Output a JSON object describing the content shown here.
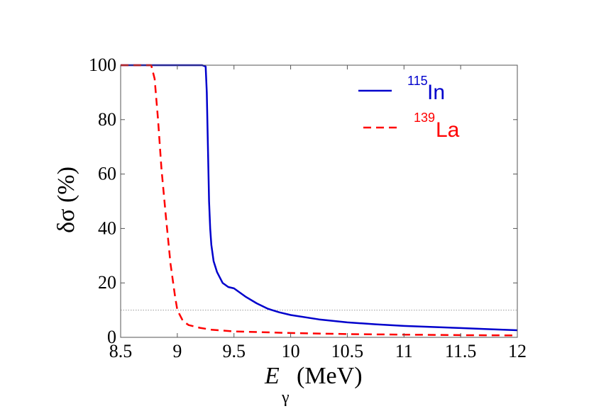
{
  "chart_data": {
    "type": "line",
    "xlabel": "E",
    "xlabel_sub": "γ",
    "xlabel_unit": "(MeV)",
    "ylabel": "δσ (%)",
    "xlim": [
      8.5,
      12
    ],
    "ylim": [
      0,
      100
    ],
    "xticks": [
      8.5,
      9,
      9.5,
      10,
      10.5,
      11,
      11.5,
      12
    ],
    "xtick_labels": [
      "8.5",
      "9",
      "9.5",
      "10",
      "10.5",
      "11",
      "11.5",
      "12"
    ],
    "yticks": [
      0,
      20,
      40,
      60,
      80,
      100
    ],
    "ytick_labels": [
      "0",
      "20",
      "40",
      "60",
      "80",
      "100"
    ],
    "reference_line": {
      "y": 10,
      "style": "dotted",
      "color": "#999999"
    },
    "legend_position": "top-right",
    "series": [
      {
        "name": "In",
        "name_sup": "115",
        "color": "#0000cc",
        "dash": "solid",
        "x": [
          8.5,
          9.0,
          9.22,
          9.25,
          9.26,
          9.27,
          9.28,
          9.29,
          9.3,
          9.32,
          9.35,
          9.4,
          9.45,
          9.5,
          9.55,
          9.6,
          9.7,
          9.8,
          9.9,
          10.0,
          10.25,
          10.5,
          10.75,
          11.0,
          11.25,
          11.5,
          11.75,
          12.0
        ],
        "y": [
          100,
          100,
          100,
          99.5,
          90,
          70,
          50,
          40,
          34,
          28,
          24,
          20,
          18.5,
          18,
          16.5,
          15,
          12.5,
          10.5,
          9.2,
          8.2,
          6.6,
          5.5,
          4.8,
          4.2,
          3.8,
          3.4,
          3.0,
          2.6
        ]
      },
      {
        "name": "La",
        "name_sup": "139",
        "color": "#ff0000",
        "dash": "dashed",
        "x": [
          8.5,
          8.77,
          8.8,
          8.83,
          8.86,
          8.9,
          8.94,
          8.98,
          9.0,
          9.05,
          9.1,
          9.2,
          9.3,
          9.5,
          10.0,
          10.5,
          11.0,
          11.5,
          12.0
        ],
        "y": [
          100,
          100,
          95,
          80,
          62,
          44,
          27,
          15,
          10,
          6,
          4.5,
          3.5,
          2.8,
          2.2,
          1.6,
          1.2,
          1.0,
          0.8,
          0.7
        ]
      }
    ]
  }
}
